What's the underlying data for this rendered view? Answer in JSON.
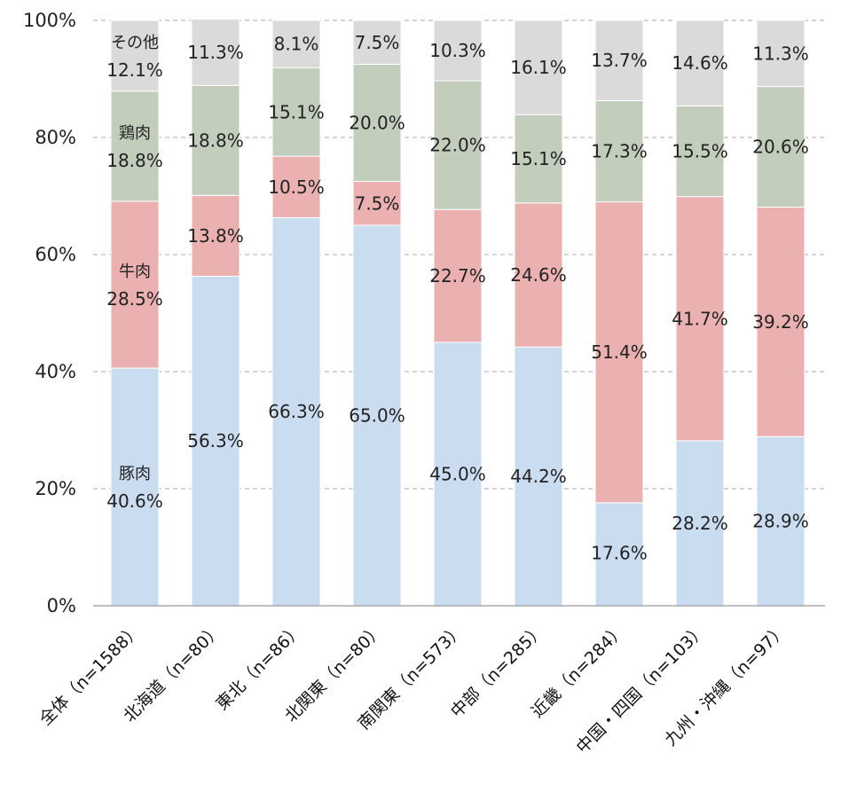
{
  "chart_data": {
    "type": "bar",
    "stacked": true,
    "percent": true,
    "title": "",
    "xlabel": "",
    "ylabel": "",
    "ylim": [
      0,
      100
    ],
    "yticks": [
      "0%",
      "20%",
      "40%",
      "60%",
      "80%",
      "100%"
    ],
    "grid": true,
    "legend": "none",
    "categories": [
      "全体（n=1588）",
      "北海道（n=80）",
      "東北（n=86）",
      "北関東（n=80）",
      "南関東（n=573）",
      "中部（n=285）",
      "近畿（n=284）",
      "中国・四国（n=103）",
      "九州・沖縄（n=97）"
    ],
    "series": [
      {
        "name": "豚肉",
        "color": "#cadcf0",
        "values": [
          40.6,
          56.3,
          66.3,
          65.0,
          45.0,
          44.2,
          17.6,
          28.2,
          28.9
        ],
        "labels": [
          "40.6%",
          "56.3%",
          "66.3%",
          "65.0%",
          "45.0%",
          "44.2%",
          "17.6%",
          "28.2%",
          "28.9%"
        ]
      },
      {
        "name": "牛肉",
        "color": "#ebb0b0",
        "values": [
          28.5,
          13.8,
          10.5,
          7.5,
          22.7,
          24.6,
          51.4,
          41.7,
          39.2
        ],
        "labels": [
          "28.5%",
          "13.8%",
          "10.5%",
          "7.5%",
          "22.7%",
          "24.6%",
          "51.4%",
          "41.7%",
          "39.2%"
        ]
      },
      {
        "name": "鶏肉",
        "color": "#c3cdbc",
        "values": [
          18.8,
          18.8,
          15.1,
          20.0,
          22.0,
          15.1,
          17.3,
          15.5,
          20.6
        ],
        "labels": [
          "18.8%",
          "18.8%",
          "15.1%",
          "20.0%",
          "22.0%",
          "15.1%",
          "17.3%",
          "15.5%",
          "20.6%"
        ]
      },
      {
        "name": "その他",
        "color": "#dadada",
        "values": [
          12.1,
          11.3,
          8.1,
          7.5,
          10.3,
          16.1,
          13.7,
          14.6,
          11.3
        ],
        "labels": [
          "12.1%",
          "11.3%",
          "8.1%",
          "7.5%",
          "10.3%",
          "16.1%",
          "13.7%",
          "14.6%",
          "11.3%"
        ]
      }
    ]
  }
}
